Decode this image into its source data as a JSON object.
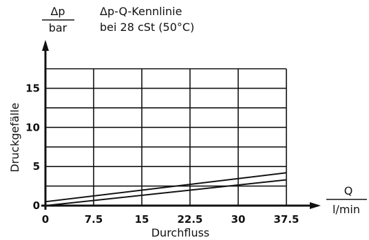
{
  "chart_data": {
    "type": "line",
    "title_line1": "Δp-Q-Kennlinie",
    "title_line2": "bei 28 cSt (50°C)",
    "y_unit": {
      "numerator": "Δp",
      "denominator": "bar"
    },
    "x_unit": {
      "numerator": "Q",
      "denominator": "l/min"
    },
    "xlabel": "Durchfluss",
    "ylabel": "Druckgefälle",
    "x_ticks": [
      "0",
      "7.5",
      "15",
      "22.5",
      "30",
      "37.5"
    ],
    "y_ticks": [
      "0",
      "5",
      "10",
      "15"
    ],
    "xlim": [
      0,
      37.5
    ],
    "ylim": [
      0,
      17.5
    ],
    "grid": true,
    "series": [
      {
        "x": [
          0,
          37.5
        ],
        "y": [
          0.5,
          4.2
        ]
      },
      {
        "x": [
          0,
          37.5
        ],
        "y": [
          0,
          3.3
        ]
      }
    ],
    "line_color": "#111111"
  }
}
